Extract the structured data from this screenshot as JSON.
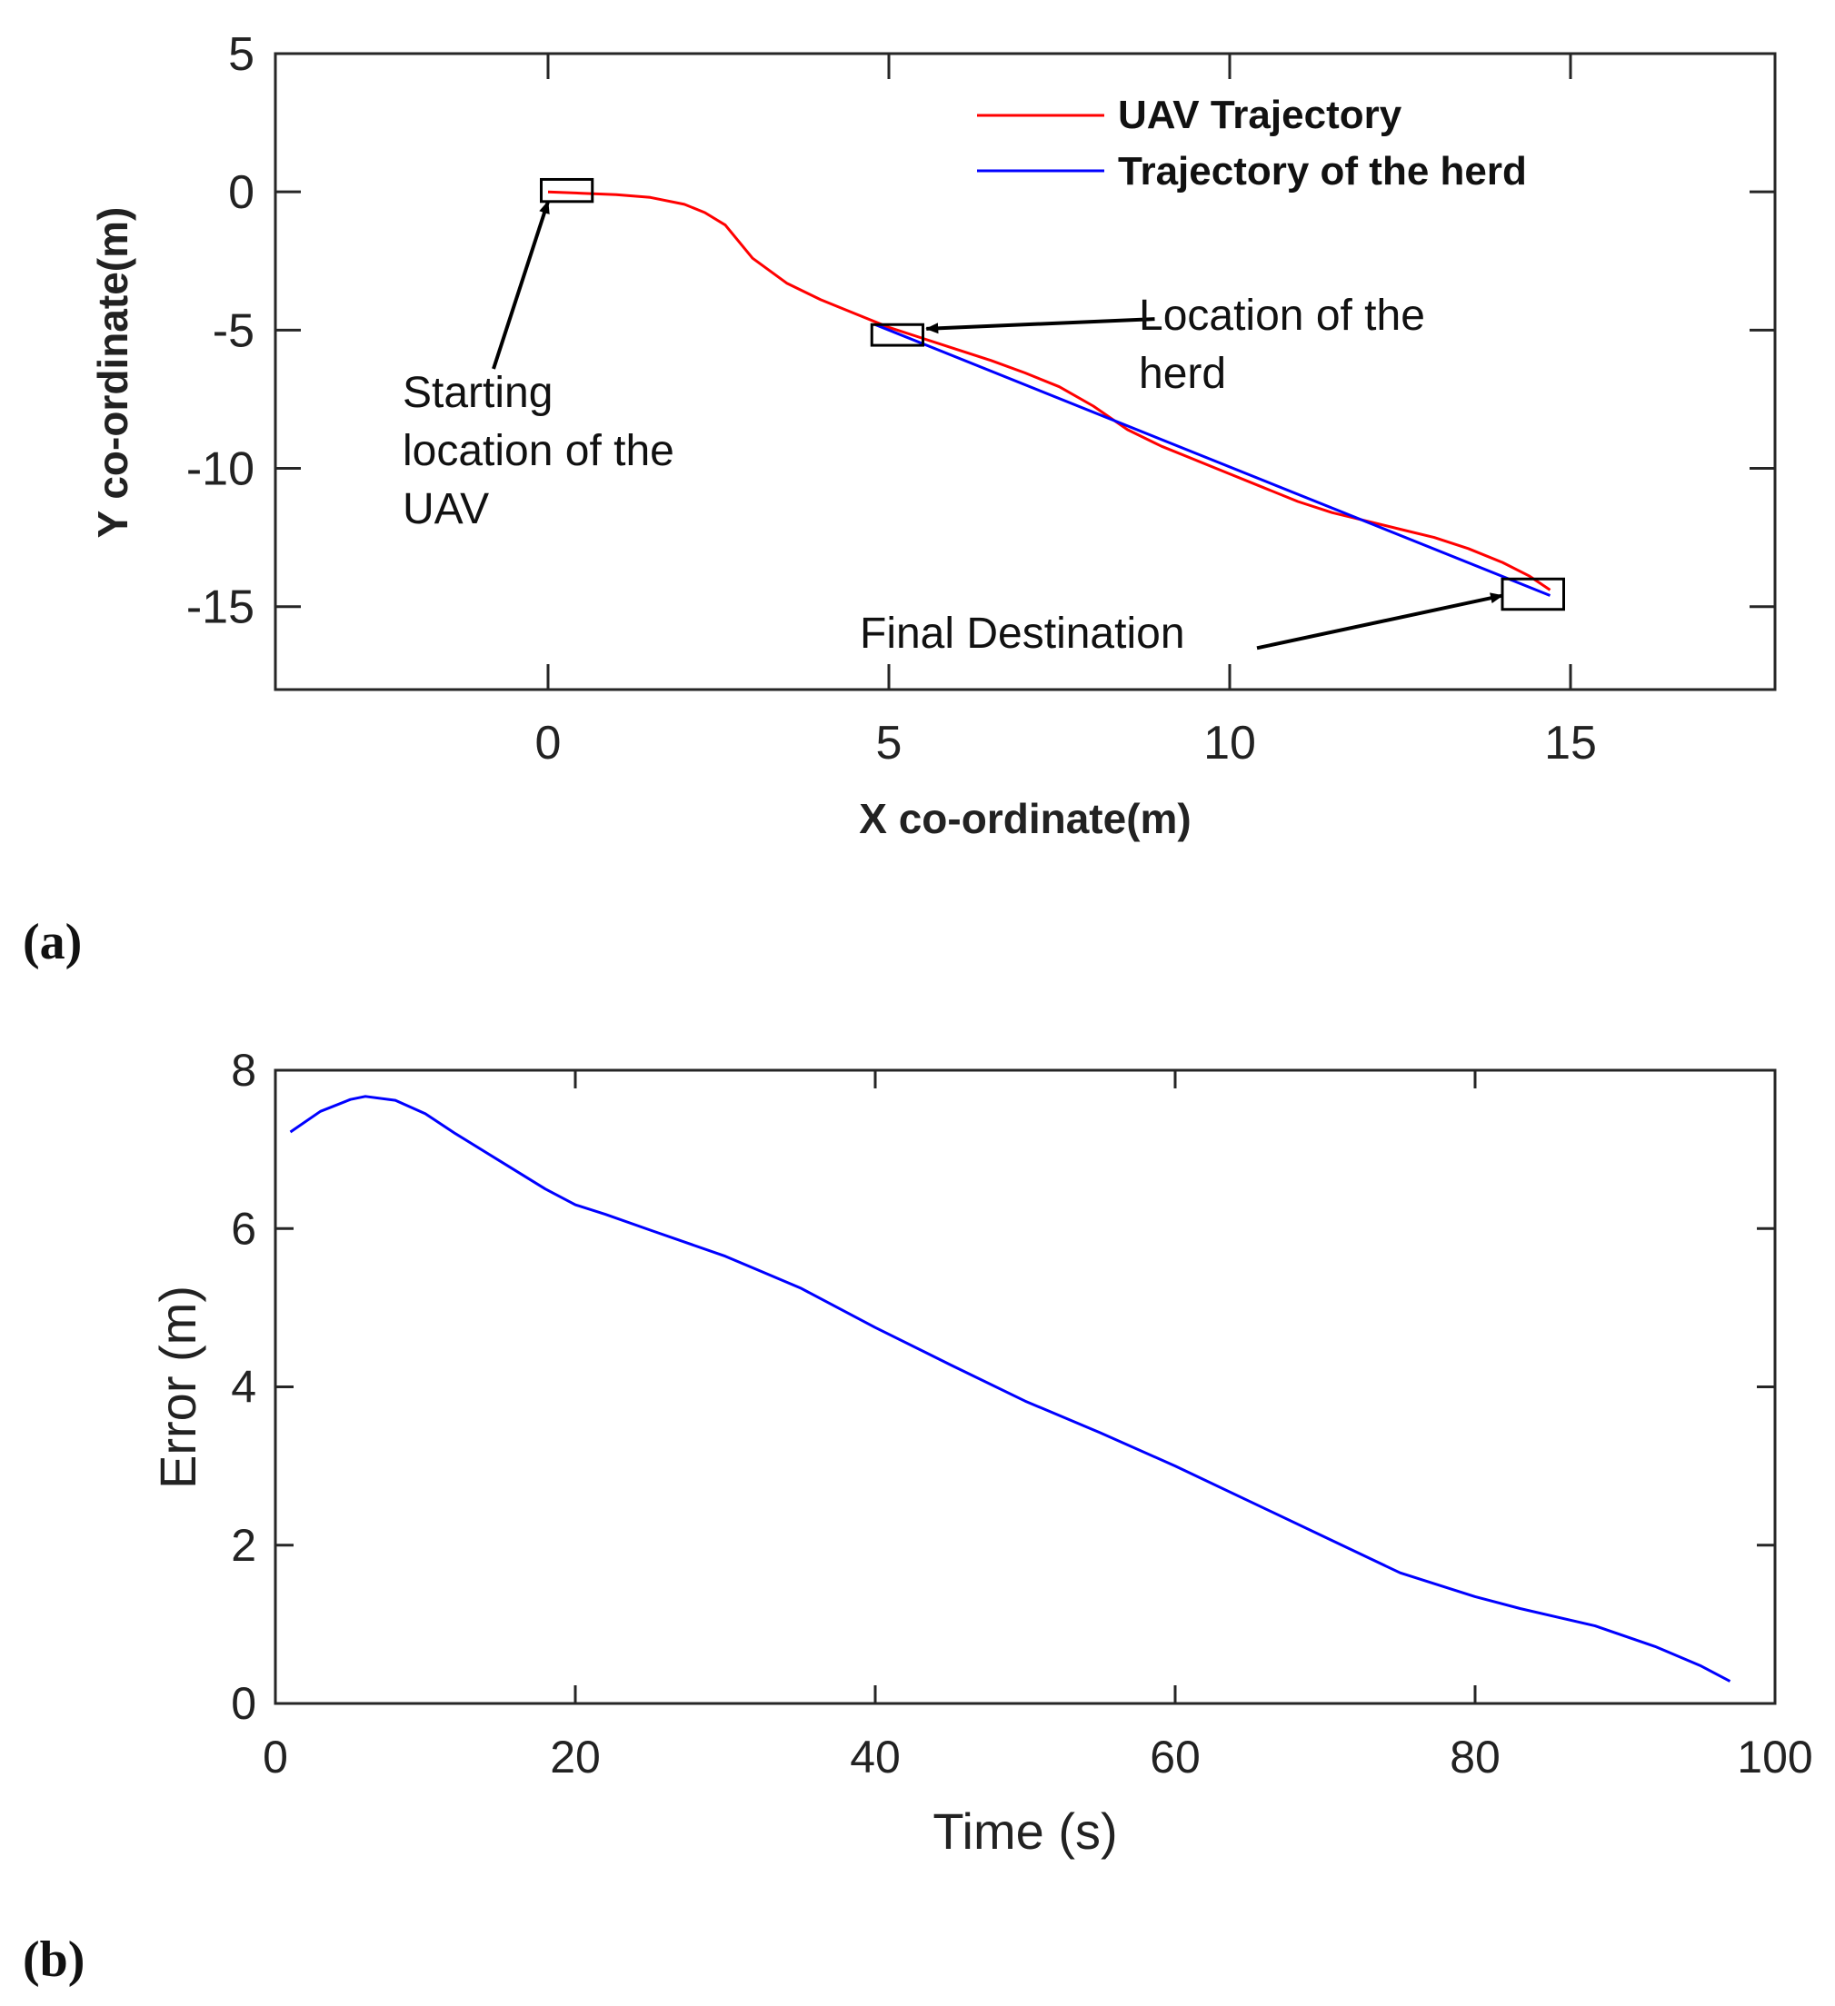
{
  "chart_data": [
    {
      "id": "a",
      "type": "line",
      "panel_label": "(a)",
      "xlabel": "X co-ordinate(m)",
      "ylabel": "Y co-ordinate(m)",
      "xlim": [
        -4,
        18
      ],
      "ylim": [
        -18,
        5
      ],
      "xticks": [
        0,
        5,
        10,
        15
      ],
      "yticks": [
        5,
        0,
        -5,
        -10,
        -15
      ],
      "legend_position": "top-right",
      "series": [
        {
          "name": "UAV Trajectory",
          "color": "#ff0000",
          "x": [
            0,
            0.5,
            1.0,
            1.5,
            2.0,
            2.3,
            2.6,
            3.0,
            3.5,
            4.0,
            4.5,
            5.0,
            5.5,
            6.0,
            6.5,
            7.0,
            7.5,
            8.0,
            8.5,
            9.0,
            9.5,
            10.0,
            10.5,
            11.0,
            11.5,
            12.0,
            12.5,
            13.0,
            13.5,
            14.0,
            14.4,
            14.7
          ],
          "y": [
            0,
            -0.05,
            -0.1,
            -0.2,
            -0.45,
            -0.75,
            -1.2,
            -2.4,
            -3.3,
            -3.9,
            -4.4,
            -4.9,
            -5.3,
            -5.7,
            -6.1,
            -6.55,
            -7.05,
            -7.75,
            -8.6,
            -9.2,
            -9.7,
            -10.2,
            -10.7,
            -11.2,
            -11.6,
            -11.9,
            -12.2,
            -12.5,
            -12.9,
            -13.4,
            -13.9,
            -14.4
          ]
        },
        {
          "name": "Trajectory of the herd",
          "color": "#0000ff",
          "x": [
            4.8,
            14.7
          ],
          "y": [
            -4.8,
            -14.6
          ]
        }
      ],
      "annotations": [
        {
          "text": [
            "Starting",
            "location of the",
            "UAV"
          ],
          "box": {
            "x0": -0.1,
            "x1": 0.65,
            "y0": -0.35,
            "y1": 0.45
          },
          "arrow_from": [
            -0.8,
            -6.4
          ],
          "arrow_to": [
            0.0,
            -0.35
          ]
        },
        {
          "text": [
            "Location of the",
            "herd"
          ],
          "box": {
            "x0": 4.75,
            "x1": 5.5,
            "y0": -5.55,
            "y1": -4.8
          },
          "arrow_from": [
            8.9,
            -4.6
          ],
          "arrow_to": [
            5.55,
            -4.95
          ]
        },
        {
          "text": [
            "Final Destination"
          ],
          "box": {
            "x0": 14.0,
            "x1": 14.9,
            "y0": -15.1,
            "y1": -14.0
          },
          "arrow_from": [
            10.4,
            -16.5
          ],
          "arrow_to": [
            14.0,
            -14.6
          ]
        }
      ]
    },
    {
      "id": "b",
      "type": "line",
      "panel_label": "(b)",
      "xlabel": "Time (s)",
      "ylabel": "Error (m)",
      "xlim": [
        0,
        100
      ],
      "ylim": [
        0,
        8
      ],
      "xticks": [
        0,
        20,
        40,
        60,
        80,
        100
      ],
      "yticks": [
        0,
        2,
        4,
        6,
        8
      ],
      "series": [
        {
          "name": "Error",
          "color": "#0000ff",
          "x": [
            1,
            3,
            5,
            6,
            8,
            10,
            12,
            15,
            18,
            20,
            22,
            25,
            30,
            35,
            40,
            45,
            50,
            55,
            60,
            65,
            70,
            75,
            80,
            83,
            88,
            92,
            95,
            97
          ],
          "y": [
            7.22,
            7.48,
            7.63,
            7.67,
            7.62,
            7.45,
            7.2,
            6.85,
            6.5,
            6.3,
            6.18,
            5.98,
            5.65,
            5.25,
            4.75,
            4.28,
            3.82,
            3.42,
            3.0,
            2.55,
            2.1,
            1.65,
            1.35,
            1.2,
            0.98,
            0.72,
            0.48,
            0.28
          ]
        }
      ]
    }
  ]
}
